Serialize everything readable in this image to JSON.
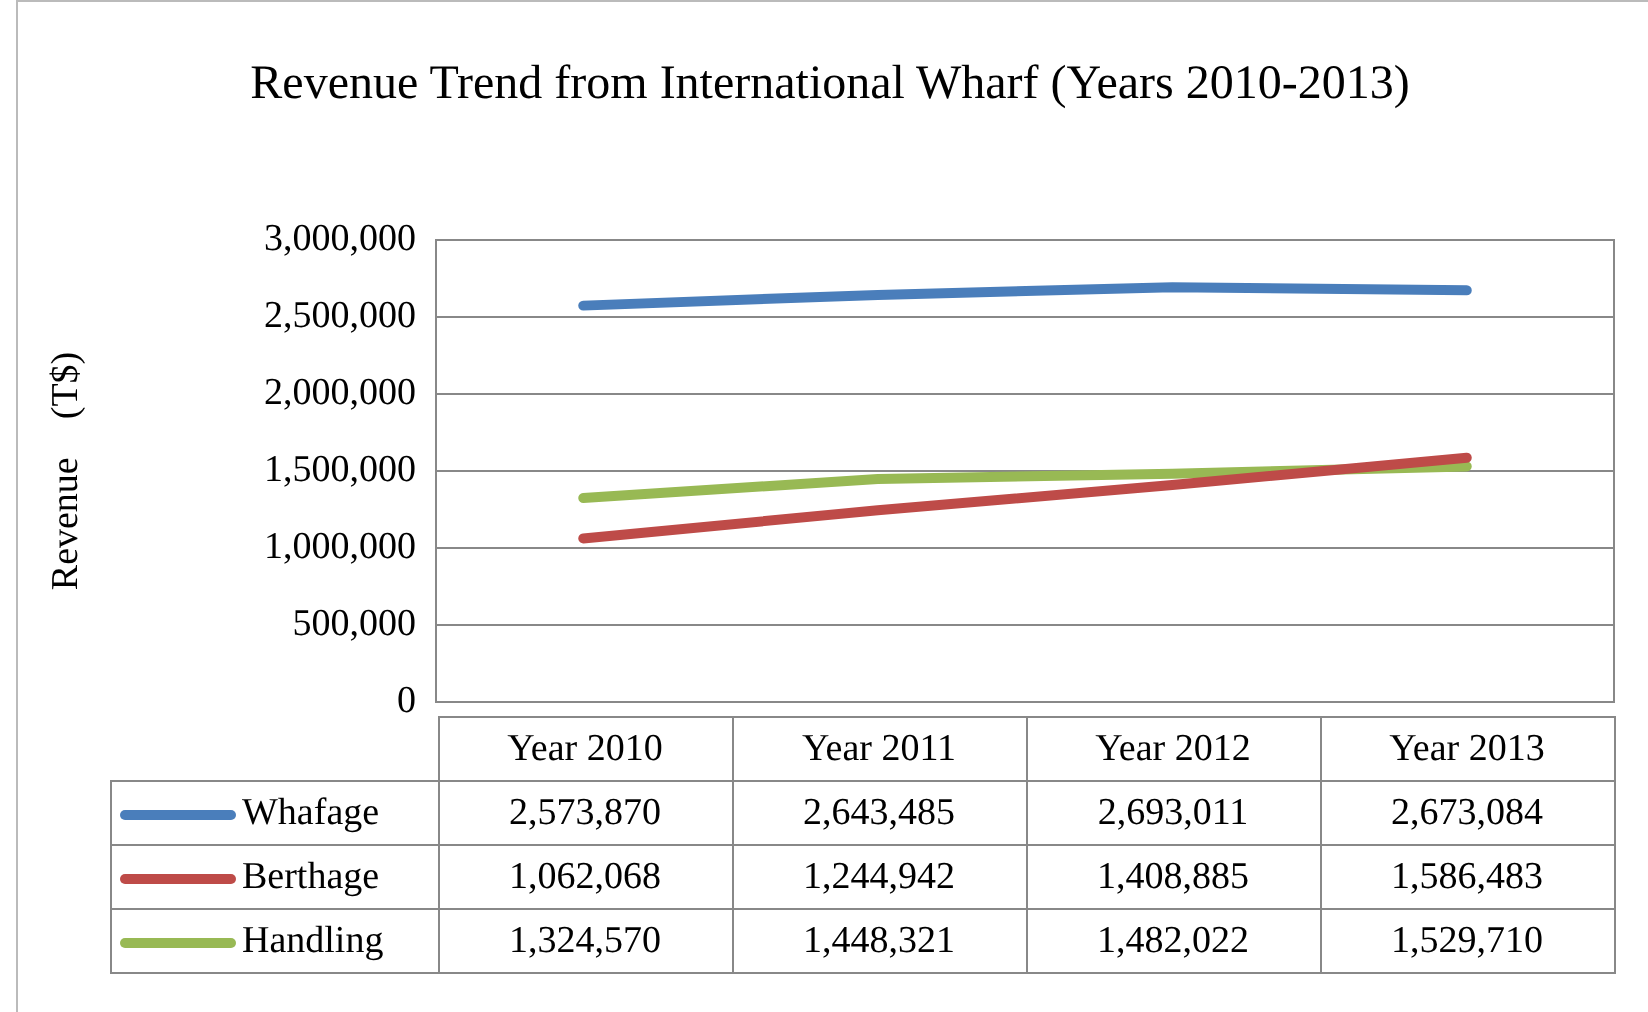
{
  "chart_data": {
    "type": "line",
    "title": "Revenue Trend from International Wharf (Years 2010-2013)",
    "ylabel": "Revenue　(T$)",
    "categories": [
      "Year 2010",
      "Year 2011",
      "Year 2012",
      "Year 2013"
    ],
    "series": [
      {
        "name": "Whafage",
        "color": "#4a7ebb",
        "values": [
          2573870,
          2643485,
          2693011,
          2673084
        ],
        "value_labels": [
          "2,573,870",
          "2,643,485",
          "2,693,011",
          "2,673,084"
        ]
      },
      {
        "name": "Berthage",
        "color": "#be4b48",
        "values": [
          1062068,
          1244942,
          1408885,
          1586483
        ],
        "value_labels": [
          "1,062,068",
          "1,244,942",
          "1,408,885",
          "1,586,483"
        ]
      },
      {
        "name": "Handling",
        "color": "#98b954",
        "values": [
          1324570,
          1448321,
          1482022,
          1529710
        ],
        "value_labels": [
          "1,324,570",
          "1,448,321",
          "1,482,022",
          "1,529,710"
        ]
      }
    ],
    "ylim": [
      0,
      3000000
    ],
    "yticks": [
      0,
      {
        "value": 500000,
        "label": "500,000"
      },
      {
        "value": 1000000,
        "label": "1,000,000"
      },
      {
        "value": 1500000,
        "label": "1,500,000"
      },
      {
        "value": 2000000,
        "label": "2,000,000"
      },
      {
        "value": 2500000,
        "label": "2,500,000"
      },
      {
        "value": 3000000,
        "label": "3,000,000"
      }
    ],
    "grid": "y",
    "legend": "bottom",
    "marker": "none",
    "line_style": "solid"
  }
}
